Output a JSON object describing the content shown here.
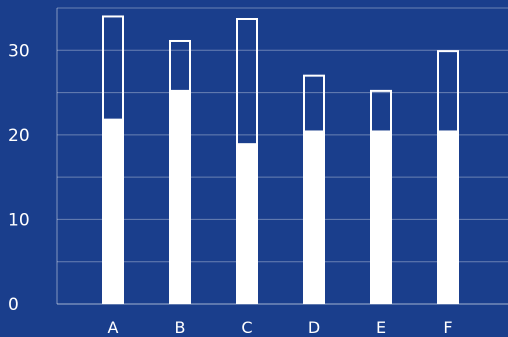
{
  "chart_data": {
    "type": "bar",
    "stacked": true,
    "categories": [
      "A",
      "B",
      "C",
      "D",
      "E",
      "F"
    ],
    "series": [
      {
        "style": "filled",
        "values": [
          21.8,
          25.2,
          18.9,
          20.4,
          20.4,
          20.4
        ]
      },
      {
        "style": "outline",
        "values": [
          12.2,
          5.9,
          14.8,
          6.6,
          4.8,
          9.5
        ]
      }
    ],
    "totals": [
      34.0,
      31.1,
      33.7,
      27.0,
      25.2,
      29.9
    ],
    "yticks": [
      0,
      10,
      20,
      30
    ],
    "ylim": [
      0,
      35
    ],
    "grid": true,
    "title": "",
    "xlabel": "",
    "ylabel": ""
  },
  "colors": {
    "background": "#1a3e8c",
    "bar_fill": "#ffffff",
    "bar_outline": "#ffffff",
    "grid": "#ffffff"
  }
}
